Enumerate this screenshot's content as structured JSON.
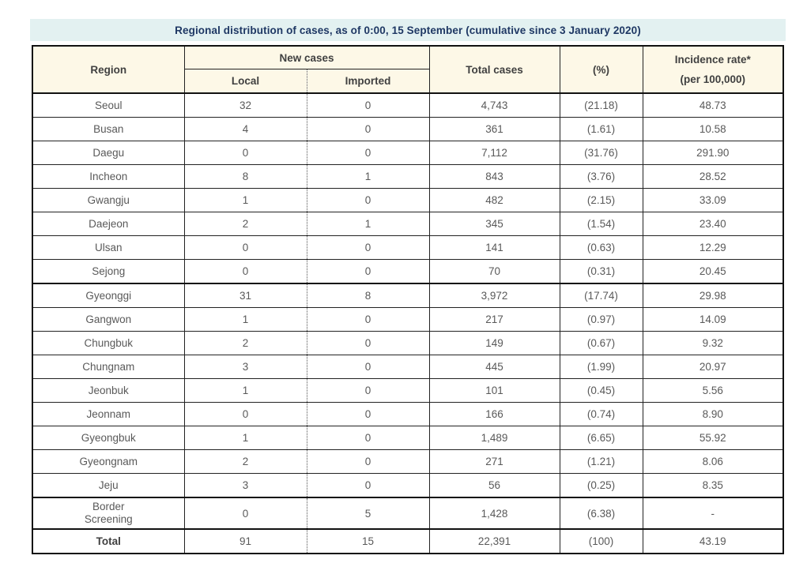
{
  "title": "Regional distribution of cases, as of 0:00, 15 September (cumulative since 3 January 2020)",
  "table": {
    "headers": {
      "region": "Region",
      "new_cases": "New cases",
      "local": "Local",
      "imported": "Imported",
      "total_cases": "Total cases",
      "percent": "(%)",
      "incidence_line1": "Incidence rate*",
      "incidence_line2": "(per 100,000)"
    },
    "rows": [
      {
        "region": "Seoul",
        "local": "32",
        "imported": "0",
        "total": "4,743",
        "percent": "(21.18)",
        "incidence": "48.73"
      },
      {
        "region": "Busan",
        "local": "4",
        "imported": "0",
        "total": "361",
        "percent": "(1.61)",
        "incidence": "10.58"
      },
      {
        "region": "Daegu",
        "local": "0",
        "imported": "0",
        "total": "7,112",
        "percent": "(31.76)",
        "incidence": "291.90"
      },
      {
        "region": "Incheon",
        "local": "8",
        "imported": "1",
        "total": "843",
        "percent": "(3.76)",
        "incidence": "28.52"
      },
      {
        "region": "Gwangju",
        "local": "1",
        "imported": "0",
        "total": "482",
        "percent": "(2.15)",
        "incidence": "33.09"
      },
      {
        "region": "Daejeon",
        "local": "2",
        "imported": "1",
        "total": "345",
        "percent": "(1.54)",
        "incidence": "23.40"
      },
      {
        "region": "Ulsan",
        "local": "0",
        "imported": "0",
        "total": "141",
        "percent": "(0.63)",
        "incidence": "12.29"
      },
      {
        "region": "Sejong",
        "local": "0",
        "imported": "0",
        "total": "70",
        "percent": "(0.31)",
        "incidence": "20.45"
      },
      {
        "region": "Gyeonggi",
        "local": "31",
        "imported": "8",
        "total": "3,972",
        "percent": "(17.74)",
        "incidence": "29.98",
        "thick_top": true
      },
      {
        "region": "Gangwon",
        "local": "1",
        "imported": "0",
        "total": "217",
        "percent": "(0.97)",
        "incidence": "14.09"
      },
      {
        "region": "Chungbuk",
        "local": "2",
        "imported": "0",
        "total": "149",
        "percent": "(0.67)",
        "incidence": "9.32"
      },
      {
        "region": "Chungnam",
        "local": "3",
        "imported": "0",
        "total": "445",
        "percent": "(1.99)",
        "incidence": "20.97"
      },
      {
        "region": "Jeonbuk",
        "local": "1",
        "imported": "0",
        "total": "101",
        "percent": "(0.45)",
        "incidence": "5.56"
      },
      {
        "region": "Jeonnam",
        "local": "0",
        "imported": "0",
        "total": "166",
        "percent": "(0.74)",
        "incidence": "8.90"
      },
      {
        "region": "Gyeongbuk",
        "local": "1",
        "imported": "0",
        "total": "1,489",
        "percent": "(6.65)",
        "incidence": "55.92"
      },
      {
        "region": "Gyeongnam",
        "local": "2",
        "imported": "0",
        "total": "271",
        "percent": "(1.21)",
        "incidence": "8.06"
      },
      {
        "region": "Jeju",
        "local": "3",
        "imported": "0",
        "total": "56",
        "percent": "(0.25)",
        "incidence": "8.35"
      },
      {
        "region": "Border Screening",
        "local": "0",
        "imported": "5",
        "total": "1,428",
        "percent": "(6.38)",
        "incidence": "-",
        "thick_top": true,
        "two_line": true
      },
      {
        "region": "Total",
        "local": "91",
        "imported": "15",
        "total": "22,391",
        "percent": "(100)",
        "incidence": "43.19",
        "thick_top": true,
        "is_total": true
      }
    ],
    "colors": {
      "title_bg": "#e3f1f1",
      "title_text": "#1f3864",
      "header_bg": "#fdf8e7",
      "header_text": "#404040",
      "body_text": "#595959",
      "border": "#111111"
    }
  }
}
